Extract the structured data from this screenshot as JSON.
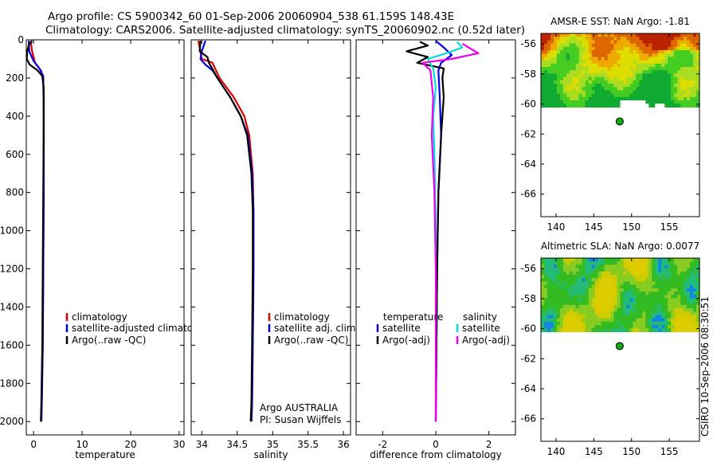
{
  "header": {
    "line1": "Argo profile: CS 5900342_60 01-Sep-2006 20060904_538 61.159S 148.43E",
    "line2": "Climatology: CARS2006. Satellite-adjusted climatology: synTS_20060902.nc (0.52d later)"
  },
  "credit": "CSIRO 10-Sep-2006 08:30:51",
  "colors": {
    "climatology": "#dd0000",
    "satellite": "#0000ee",
    "argo": "#000000",
    "sal_satellite": "#00dddd",
    "sal_argo": "#ee00ee",
    "marker": "#11aa11"
  },
  "chart_data": [
    {
      "type": "line",
      "name": "temperature-profile",
      "xlabel": "temperature",
      "xlim": [
        -1.5,
        31
      ],
      "ylim": [
        2070,
        0
      ],
      "xticks": [
        "0",
        "10",
        "20",
        "30"
      ],
      "xtick_values": [
        0,
        10,
        20,
        30
      ],
      "yticks": [
        "0",
        "200",
        "400",
        "600",
        "800",
        "1000",
        "1200",
        "1400",
        "1600",
        "1800",
        "2000"
      ],
      "ytick_values": [
        0,
        200,
        400,
        600,
        800,
        1000,
        1200,
        1400,
        1600,
        1800,
        2000
      ],
      "legend": [
        "climatology",
        "satellite-adjusted climatology",
        "Argo(..raw -QC)"
      ],
      "series": [
        {
          "name": "climatology",
          "color": "#dd0000",
          "points": [
            [
              -0.6,
              5
            ],
            [
              -0.3,
              60
            ],
            [
              0.3,
              120
            ],
            [
              1.5,
              160
            ],
            [
              2.0,
              200
            ],
            [
              2.1,
              400
            ],
            [
              2.1,
              800
            ],
            [
              2.0,
              1200
            ],
            [
              1.9,
              1600
            ],
            [
              1.7,
              1900
            ],
            [
              1.6,
              2000
            ]
          ]
        },
        {
          "name": "satellite-adjusted climatology",
          "color": "#0000ee",
          "points": [
            [
              -1.0,
              5
            ],
            [
              -0.9,
              60
            ],
            [
              0.0,
              110
            ],
            [
              1.2,
              150
            ],
            [
              2.0,
              190
            ],
            [
              2.1,
              400
            ],
            [
              2.1,
              800
            ],
            [
              2.0,
              1200
            ],
            [
              1.9,
              1600
            ],
            [
              1.7,
              1900
            ],
            [
              1.6,
              2000
            ]
          ]
        },
        {
          "name": "Argo(..raw -QC)",
          "color": "#000000",
          "points": [
            [
              -0.3,
              5
            ],
            [
              -1.0,
              30
            ],
            [
              -1.3,
              60
            ],
            [
              -1.4,
              100
            ],
            [
              -0.8,
              130
            ],
            [
              0.8,
              160
            ],
            [
              1.8,
              190
            ],
            [
              2.1,
              250
            ],
            [
              2.1,
              400
            ],
            [
              2.0,
              800
            ],
            [
              1.9,
              1200
            ],
            [
              1.8,
              1600
            ],
            [
              1.6,
              1900
            ],
            [
              1.5,
              2000
            ]
          ]
        }
      ]
    },
    {
      "type": "line",
      "name": "salinity-profile",
      "xlabel": "salinity",
      "xlim": [
        33.85,
        36.1
      ],
      "ylim": [
        2070,
        0
      ],
      "xticks": [
        "34",
        "34.5",
        "35",
        "35.5",
        "36"
      ],
      "xtick_values": [
        34,
        34.5,
        35,
        35.5,
        36
      ],
      "legend": [
        "climatology",
        "satellite adj. clim.",
        "Argo(..raw -QC)"
      ],
      "annotation": [
        "Argo AUSTRALIA",
        "PI: Susan Wijffels"
      ],
      "series": [
        {
          "name": "climatology",
          "color": "#dd0000",
          "points": [
            [
              33.95,
              5
            ],
            [
              33.98,
              60
            ],
            [
              34.0,
              100
            ],
            [
              34.15,
              120
            ],
            [
              34.2,
              160
            ],
            [
              34.25,
              200
            ],
            [
              34.45,
              300
            ],
            [
              34.6,
              400
            ],
            [
              34.67,
              500
            ],
            [
              34.72,
              700
            ],
            [
              34.73,
              900
            ],
            [
              34.73,
              1200
            ],
            [
              34.72,
              1600
            ],
            [
              34.71,
              1900
            ],
            [
              34.7,
              2000
            ]
          ]
        },
        {
          "name": "satellite adj. clim.",
          "color": "#0000ee",
          "points": [
            [
              34.05,
              5
            ],
            [
              34.0,
              60
            ],
            [
              33.98,
              100
            ],
            [
              34.05,
              130
            ],
            [
              34.15,
              160
            ],
            [
              34.22,
              200
            ],
            [
              34.4,
              300
            ],
            [
              34.55,
              400
            ],
            [
              34.65,
              500
            ],
            [
              34.71,
              700
            ],
            [
              34.73,
              900
            ],
            [
              34.73,
              1200
            ],
            [
              34.72,
              1600
            ],
            [
              34.71,
              1900
            ],
            [
              34.7,
              2000
            ]
          ]
        },
        {
          "name": "Argo(..raw -QC)",
          "color": "#000000",
          "points": [
            [
              33.98,
              5
            ],
            [
              33.97,
              60
            ],
            [
              34.08,
              90
            ],
            [
              34.1,
              120
            ],
            [
              34.16,
              160
            ],
            [
              34.22,
              200
            ],
            [
              34.4,
              300
            ],
            [
              34.55,
              400
            ],
            [
              34.64,
              500
            ],
            [
              34.7,
              700
            ],
            [
              34.72,
              900
            ],
            [
              34.72,
              1200
            ],
            [
              34.71,
              1600
            ],
            [
              34.7,
              1900
            ],
            [
              34.69,
              2000
            ]
          ]
        }
      ]
    },
    {
      "type": "line",
      "name": "difference-profile",
      "xlabel": "difference from climatology",
      "xlim": [
        -3,
        3
      ],
      "ylim": [
        2070,
        0
      ],
      "xticks": [
        "-2",
        "0",
        "2"
      ],
      "xtick_values": [
        -2,
        0,
        2
      ],
      "legend": {
        "temperature_header": "temperature",
        "salinity_header": "salinity",
        "temperature": [
          "satellite",
          "Argo(-adj)"
        ],
        "salinity": [
          "satellite",
          "Argo(-adj)"
        ]
      },
      "series": [
        {
          "name": "temperature satellite",
          "color": "#0000ee",
          "points": [
            [
              0.0,
              5
            ],
            [
              0.3,
              40
            ],
            [
              0.6,
              80
            ],
            [
              0.2,
              120
            ],
            [
              0.1,
              160
            ],
            [
              0.15,
              300
            ],
            [
              0.2,
              500
            ],
            [
              0.1,
              800
            ],
            [
              0.05,
              1200
            ],
            [
              0.0,
              2000
            ]
          ]
        },
        {
          "name": "temperature Argo(-adj)",
          "color": "#000000",
          "points": [
            [
              -0.6,
              10
            ],
            [
              -0.3,
              30
            ],
            [
              -1.1,
              60
            ],
            [
              -0.3,
              90
            ],
            [
              -0.7,
              120
            ],
            [
              0.3,
              150
            ],
            [
              0.25,
              200
            ],
            [
              0.3,
              300
            ],
            [
              0.2,
              500
            ],
            [
              0.1,
              800
            ],
            [
              0.05,
              1200
            ],
            [
              0.0,
              2000
            ]
          ]
        },
        {
          "name": "salinity satellite",
          "color": "#00dddd",
          "points": [
            [
              0.8,
              10
            ],
            [
              1.0,
              40
            ],
            [
              0.4,
              70
            ],
            [
              -0.3,
              100
            ],
            [
              -0.1,
              150
            ],
            [
              0.0,
              250
            ],
            [
              -0.1,
              400
            ],
            [
              -0.05,
              600
            ],
            [
              0.0,
              1000
            ],
            [
              0.0,
              2000
            ]
          ]
        },
        {
          "name": "salinity Argo(-adj)",
          "color": "#ee00ee",
          "points": [
            [
              1.0,
              20
            ],
            [
              1.6,
              70
            ],
            [
              0.6,
              100
            ],
            [
              -0.5,
              120
            ],
            [
              -0.2,
              160
            ],
            [
              -0.1,
              300
            ],
            [
              -0.15,
              500
            ],
            [
              -0.05,
              800
            ],
            [
              0.0,
              1200
            ],
            [
              0.0,
              2000
            ]
          ]
        }
      ]
    },
    {
      "type": "heatmap",
      "name": "sst-map",
      "title": "AMSR-E SST: NaN Argo: -1.81",
      "xlim": [
        138,
        159
      ],
      "ylim": [
        -67.5,
        -55.3
      ],
      "xticks": [
        "140",
        "145",
        "150",
        "155"
      ],
      "xtick_values": [
        140,
        145,
        150,
        155
      ],
      "yticks": [
        "-56",
        "-58",
        "-60",
        "-62",
        "-64",
        "-66"
      ],
      "ytick_values": [
        -56,
        -58,
        -60,
        -62,
        -64,
        -66
      ],
      "data_lat_range": [
        -60.2,
        -55.3
      ],
      "argo_position": [
        148.43,
        -61.159
      ]
    },
    {
      "type": "heatmap",
      "name": "sla-map",
      "title": "Altimetric SLA: NaN Argo: 0.0077",
      "xlim": [
        138,
        159
      ],
      "ylim": [
        -67.5,
        -55.3
      ],
      "xticks": [
        "140",
        "145",
        "150",
        "155"
      ],
      "xtick_values": [
        140,
        145,
        150,
        155
      ],
      "yticks": [
        "-56",
        "-58",
        "-60",
        "-62",
        "-64",
        "-66"
      ],
      "ytick_values": [
        -56,
        -58,
        -60,
        -62,
        -64,
        -66
      ],
      "data_lat_range": [
        -60.2,
        -55.3
      ],
      "argo_position": [
        148.43,
        -61.159
      ]
    }
  ]
}
